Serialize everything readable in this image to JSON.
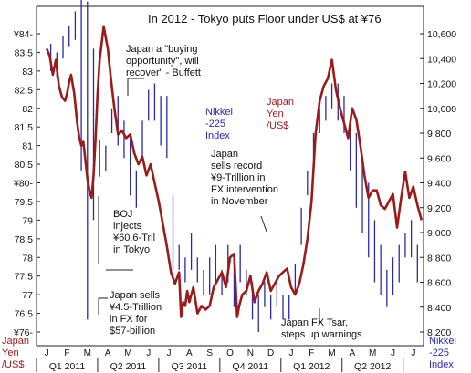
{
  "chart_data": {
    "type": "line",
    "title": "In 2012 - Tokyo puts Floor under US$ at ¥76",
    "months": [
      "J",
      "F",
      "M",
      "A",
      "M",
      "J",
      "J",
      "A",
      "S",
      "O",
      "N",
      "D",
      "J",
      "F",
      "M",
      "A",
      "M",
      "J",
      "J"
    ],
    "quarters": [
      "Q1 2011",
      "Q2 2011",
      "Q3 2011",
      "Q4 2011",
      "Q1 2012",
      "Q2 2012"
    ],
    "left_axis": {
      "label_lines": [
        "Japan",
        "Yen",
        "/US$"
      ],
      "ticks": [
        "¥84-",
        "83.5",
        "83",
        "82.5",
        "82",
        "81.5",
        "81",
        "80.5",
        "¥80-",
        "79.5",
        "79",
        "78.5",
        "78",
        "77.5",
        "77",
        "76.5",
        "¥76-"
      ],
      "ylim": [
        76,
        84
      ]
    },
    "right_axis": {
      "label_lines": [
        "Nikkei",
        "-225",
        "Index"
      ],
      "ticks": [
        "10,600",
        "10,400",
        "10,200",
        "10,000",
        "9,800",
        "9,600",
        "9,400",
        "9,200",
        "9,000",
        "8,800",
        "8,600",
        "8,400",
        "8,200"
      ],
      "ylim": [
        8200,
        10600
      ]
    },
    "series": [
      {
        "name": "Japan Yen /US$",
        "label_lines": [
          "Japan",
          "Yen",
          "/US$"
        ],
        "color": "#9b1b1b",
        "kind": "line",
        "x": [
          0,
          0.15,
          0.3,
          0.45,
          0.6,
          0.75,
          0.9,
          1.0,
          1.1,
          1.2,
          1.35,
          1.5,
          1.6,
          1.7,
          1.8,
          1.9,
          2.0,
          2.1,
          2.2,
          2.3,
          2.4,
          2.5,
          2.6,
          2.8,
          3.0,
          3.15,
          3.3,
          3.5,
          3.7,
          3.9,
          4.1,
          4.3,
          4.5,
          4.7,
          4.9,
          5.1,
          5.3,
          5.5,
          5.7,
          5.9,
          6.1,
          6.3,
          6.5,
          6.6,
          6.7,
          6.8,
          6.9,
          7.0,
          7.2,
          7.4,
          7.6,
          7.8,
          8.0,
          8.2,
          8.4,
          8.6,
          8.8,
          9.0,
          9.2,
          9.35,
          9.45,
          9.6,
          9.8,
          10.0,
          10.2,
          10.4,
          10.6,
          10.8,
          11.0,
          11.2,
          11.4,
          11.6,
          11.8,
          12.0,
          12.2,
          12.4,
          12.6,
          12.8,
          13.0,
          13.2,
          13.4,
          13.6,
          13.8,
          14.0,
          14.2,
          14.4,
          14.6,
          14.8,
          15.0,
          15.2,
          15.4,
          15.6,
          15.8,
          16.0,
          16.2,
          16.4,
          16.6,
          16.8,
          17.0,
          17.2,
          17.4,
          17.6,
          17.8,
          18.0,
          18.2,
          18.4
        ],
        "values": [
          83.6,
          83.4,
          82.9,
          83.3,
          82.6,
          82.3,
          82.2,
          82.4,
          82.7,
          82.9,
          82.4,
          81.6,
          81.2,
          81.0,
          81.1,
          80.6,
          80.1,
          79.8,
          79.6,
          80.2,
          81.2,
          82.4,
          83.3,
          84.2,
          83.6,
          82.8,
          82.1,
          81.3,
          81.4,
          81.2,
          81.3,
          80.8,
          80.5,
          80.7,
          80.2,
          80.5,
          80.0,
          79.5,
          78.9,
          78.3,
          77.6,
          77.3,
          77.6,
          76.4,
          76.8,
          76.7,
          77.1,
          76.8,
          77.2,
          76.5,
          76.7,
          76.6,
          76.7,
          77.2,
          77.4,
          77.6,
          77.2,
          78.0,
          78.1,
          76.4,
          76.7,
          77.0,
          77.1,
          77.5,
          76.8,
          77.1,
          77.3,
          77.6,
          77.1,
          77.3,
          77.5,
          77.6,
          77.7,
          77.2,
          77.0,
          77.3,
          77.8,
          78.5,
          79.5,
          81.3,
          82.2,
          82.6,
          82.8,
          83.3,
          82.5,
          82.0,
          81.6,
          81.2,
          82.0,
          81.7,
          81.0,
          80.2,
          79.6,
          79.8,
          79.8,
          79.4,
          79.3,
          79.5,
          79.7,
          78.8,
          79.6,
          80.3,
          79.6,
          79.9,
          79.4,
          79.0
        ]
      },
      {
        "name": "Nikkei -225 Index",
        "label_lines": [
          "Nikkei",
          "-225",
          "Index"
        ],
        "color": "#2a2aa6",
        "kind": "hilo",
        "x": [
          0.2,
          0.5,
          0.8,
          1.1,
          1.4,
          1.7,
          2.0,
          2.3,
          2.6,
          2.9,
          3.2,
          3.5,
          3.8,
          4.1,
          4.4,
          4.7,
          5.0,
          5.3,
          5.6,
          5.9,
          6.2,
          6.5,
          6.8,
          7.1,
          7.4,
          7.7,
          8.0,
          8.3,
          8.6,
          8.9,
          9.2,
          9.5,
          9.8,
          10.1,
          10.4,
          10.7,
          11.0,
          11.3,
          11.6,
          11.9,
          12.2,
          12.5,
          12.8,
          13.1,
          13.4,
          13.7,
          14.0,
          14.3,
          14.6,
          14.9,
          15.2,
          15.5,
          15.8,
          16.1,
          16.4,
          16.7,
          17.0,
          17.3,
          17.6,
          17.9,
          18.2,
          18.5
        ],
        "high": [
          10520,
          10450,
          10580,
          10660,
          10780,
          10880,
          10860,
          10480,
          9750,
          9700,
          10000,
          10100,
          9900,
          9800,
          9500,
          9900,
          10150,
          10200,
          10100,
          10100,
          9300,
          8900,
          8800,
          9000,
          8800,
          8700,
          8800,
          8900,
          8700,
          8900,
          8800,
          8900,
          8700,
          8600,
          8500,
          8600,
          8500,
          8600,
          8500,
          8500,
          8750,
          9200,
          9500,
          9800,
          10000,
          10100,
          10200,
          10200,
          10100,
          9900,
          9800,
          9600,
          9400,
          9100,
          8900,
          8700,
          8800,
          8900,
          9000,
          9100,
          8900,
          8700
        ],
        "low": [
          10300,
          10250,
          10400,
          10500,
          10550,
          9500,
          8300,
          9100,
          9450,
          9500,
          9800,
          9700,
          9600,
          9300,
          9200,
          9600,
          9900,
          9900,
          9700,
          9600,
          8700,
          8700,
          8600,
          8700,
          8600,
          8500,
          8500,
          8600,
          8500,
          8600,
          8400,
          8600,
          8500,
          8300,
          8200,
          8400,
          8300,
          8400,
          8300,
          8300,
          8500,
          8900,
          9300,
          9600,
          9800,
          9900,
          10000,
          9900,
          9800,
          9500,
          9200,
          9000,
          8800,
          8600,
          8500,
          8400,
          8500,
          8600,
          8800,
          8800,
          8600,
          8700
        ]
      }
    ],
    "annotations": [
      {
        "lines": [
          "Japan a \"buying",
          "opportunity\", will",
          "recover\" - Buffett"
        ],
        "x": 3.3,
        "y": 83.9
      },
      {
        "lines": [
          "BOJ",
          "injects",
          "¥60.6-Tril",
          "in Tokyo"
        ],
        "x": 2.3,
        "y": 79.1
      },
      {
        "lines": [
          "Japan sells",
          "¥4.5-Trillion",
          "in FX for",
          "$57-billion"
        ],
        "x": 2.2,
        "y": 76.8
      },
      {
        "lines": [
          "Japan",
          "sells record",
          "¥9-Trillion in",
          "FX intervention",
          "in November"
        ],
        "x": 9.4,
        "y": 80.6
      },
      {
        "lines": [
          "Japan FX Tsar,",
          "steps up warnings"
        ],
        "x": 12.4,
        "y": 76.2
      }
    ],
    "grid": false,
    "legend": "inline labels"
  }
}
